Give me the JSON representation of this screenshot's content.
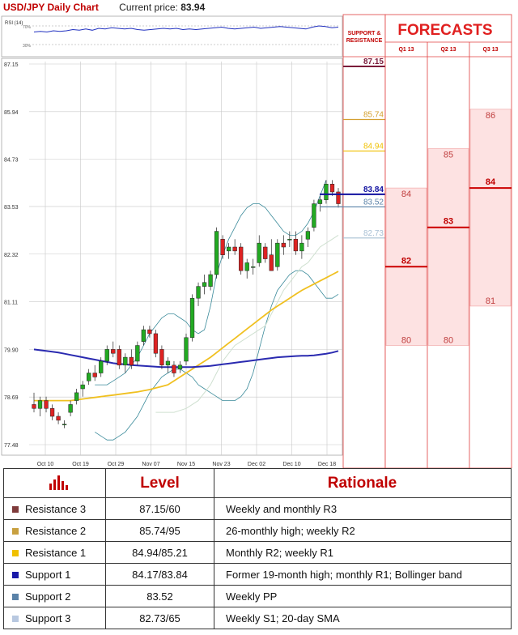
{
  "header": {
    "title": "USD/JPY Daily Chart",
    "price_label": "Current price:",
    "price_value": "83.94"
  },
  "rsi": {
    "label": "RSI (14)",
    "level_high": "70%",
    "level_low": "30%",
    "values": [
      60,
      61,
      60,
      62,
      61,
      62,
      64,
      63,
      65,
      63,
      66,
      65,
      67,
      66,
      65,
      66,
      64,
      63,
      64,
      65,
      66,
      65,
      66,
      64,
      65,
      64,
      65,
      66,
      67,
      68,
      66,
      65,
      66,
      67,
      68,
      66,
      67,
      68,
      69,
      68,
      67,
      66,
      65,
      68,
      70,
      69,
      67,
      68
    ]
  },
  "chart_data": {
    "type": "candlestick",
    "title": "USD/JPY Daily Chart",
    "y_ticks": [
      "87.15",
      "85.94",
      "84.73",
      "83.53",
      "82.32",
      "81.11",
      "79.90",
      "78.69",
      "77.48"
    ],
    "y_tick_values": [
      87.15,
      85.94,
      84.73,
      83.53,
      82.32,
      81.11,
      79.9,
      78.69,
      77.48
    ],
    "ylim": [
      77.48,
      87.15
    ],
    "x_ticks": [
      "Oct 10",
      "Oct 19",
      "Oct 29",
      "Nov 07",
      "Nov 15",
      "Nov 23",
      "Dec 02",
      "Dec 10",
      "Dec 18"
    ],
    "candles": [
      [
        78.5,
        78.8,
        78.3,
        78.4
      ],
      [
        78.4,
        78.7,
        78.2,
        78.6
      ],
      [
        78.6,
        78.7,
        78.3,
        78.4
      ],
      [
        78.4,
        78.5,
        78.1,
        78.2
      ],
      [
        78.2,
        78.3,
        78.0,
        78.1
      ],
      [
        78.0,
        78.1,
        77.9,
        78.0
      ],
      [
        78.3,
        78.6,
        78.2,
        78.5
      ],
      [
        78.6,
        78.9,
        78.5,
        78.8
      ],
      [
        78.9,
        79.1,
        78.7,
        79.0
      ],
      [
        79.1,
        79.4,
        79.0,
        79.3
      ],
      [
        79.3,
        79.5,
        79.1,
        79.2
      ],
      [
        79.3,
        79.7,
        79.2,
        79.6
      ],
      [
        79.6,
        80.0,
        79.5,
        79.9
      ],
      [
        79.9,
        80.1,
        79.7,
        79.8
      ],
      [
        79.9,
        80.0,
        79.4,
        79.5
      ],
      [
        79.5,
        79.8,
        79.3,
        79.7
      ],
      [
        79.7,
        79.9,
        79.4,
        79.5
      ],
      [
        79.6,
        80.1,
        79.5,
        80.0
      ],
      [
        80.1,
        80.5,
        80.0,
        80.4
      ],
      [
        80.4,
        80.5,
        80.2,
        80.3
      ],
      [
        80.3,
        80.4,
        79.7,
        79.8
      ],
      [
        79.9,
        80.0,
        79.4,
        79.5
      ],
      [
        79.5,
        79.7,
        79.3,
        79.6
      ],
      [
        79.5,
        79.6,
        79.2,
        79.3
      ],
      [
        79.4,
        79.6,
        79.3,
        79.5
      ],
      [
        79.6,
        80.3,
        79.5,
        80.2
      ],
      [
        80.2,
        81.3,
        80.1,
        81.2
      ],
      [
        81.2,
        81.6,
        81.0,
        81.5
      ],
      [
        81.5,
        81.8,
        81.3,
        81.6
      ],
      [
        81.5,
        81.9,
        81.4,
        81.8
      ],
      [
        81.8,
        83.0,
        81.7,
        82.9
      ],
      [
        82.7,
        82.8,
        82.2,
        82.3
      ],
      [
        82.4,
        82.6,
        82.2,
        82.5
      ],
      [
        82.5,
        82.7,
        82.3,
        82.4
      ],
      [
        82.5,
        82.6,
        81.8,
        81.9
      ],
      [
        81.9,
        82.2,
        81.7,
        82.1
      ],
      [
        82.0,
        82.2,
        81.8,
        82.0
      ],
      [
        82.1,
        82.8,
        82.0,
        82.6
      ],
      [
        82.5,
        82.6,
        82.1,
        82.2
      ],
      [
        82.3,
        82.7,
        81.9,
        81.9
      ],
      [
        82.0,
        82.7,
        81.9,
        82.6
      ],
      [
        82.6,
        82.8,
        82.3,
        82.5
      ],
      [
        82.7,
        82.9,
        82.5,
        82.7
      ],
      [
        82.7,
        82.9,
        82.3,
        82.4
      ],
      [
        82.4,
        82.8,
        82.2,
        82.6
      ],
      [
        82.7,
        83.0,
        82.5,
        82.9
      ],
      [
        83.0,
        83.7,
        82.9,
        83.6
      ],
      [
        83.6,
        83.8,
        83.4,
        83.7
      ],
      [
        83.7,
        84.2,
        83.6,
        84.1
      ],
      [
        84.1,
        84.2,
        83.8,
        83.9
      ],
      [
        83.9,
        84.0,
        83.5,
        83.6
      ]
    ],
    "sma20": [
      78.3,
      78.3,
      78.3,
      78.3,
      78.35,
      78.4,
      78.5,
      78.6,
      78.8,
      79.0,
      79.3,
      79.6,
      79.8,
      80.0,
      80.1,
      80.2,
      80.3,
      80.4,
      80.5,
      80.8,
      81.1,
      81.4,
      81.6,
      81.8,
      82.0,
      82.1,
      82.3,
      82.5,
      82.6,
      82.7,
      82.8
    ],
    "sma20_start_index": 20,
    "sma_slow": [
      79.9,
      79.88,
      79.86,
      79.84,
      79.82,
      79.79,
      79.76,
      79.73,
      79.7,
      79.67,
      79.64,
      79.61,
      79.58,
      79.55,
      79.53,
      79.52,
      79.5,
      79.49,
      79.48,
      79.47,
      79.46,
      79.45,
      79.45,
      79.45,
      79.45,
      79.45,
      79.45,
      79.46,
      79.47,
      79.48,
      79.5,
      79.52,
      79.54,
      79.56,
      79.58,
      79.6,
      79.62,
      79.64,
      79.66,
      79.68,
      79.7,
      79.71,
      79.72,
      79.73,
      79.74,
      79.74,
      79.75,
      79.77,
      79.79,
      79.82,
      79.86
    ],
    "sma_mid": [
      78.6,
      78.6,
      78.6,
      78.6,
      78.6,
      78.6,
      78.6,
      78.62,
      78.64,
      78.66,
      78.68,
      78.7,
      78.72,
      78.74,
      78.76,
      78.78,
      78.8,
      78.82,
      78.85,
      78.88,
      78.92,
      78.96,
      79.0,
      79.1,
      79.2,
      79.3,
      79.4,
      79.5,
      79.6,
      79.7,
      79.82,
      79.94,
      80.06,
      80.18,
      80.3,
      80.42,
      80.54,
      80.66,
      80.78,
      80.9,
      81.0,
      81.1,
      81.2,
      81.3,
      81.4,
      81.48,
      81.56,
      81.64,
      81.72,
      81.8,
      81.88
    ],
    "bb_upper": [
      79.0,
      79.0,
      79.0,
      79.1,
      79.2,
      79.3,
      79.5,
      79.7,
      80.0,
      80.3,
      80.5,
      80.7,
      80.8,
      80.8,
      80.7,
      80.6,
      80.4,
      80.3,
      80.4,
      81.0,
      81.8,
      82.3,
      82.7,
      83.0,
      83.3,
      83.5,
      83.6,
      83.6,
      83.5,
      83.3,
      83.1,
      82.9,
      82.8,
      82.8,
      82.9,
      83.1,
      83.4,
      83.8,
      84.2
    ],
    "bb_upper_start_index": 10,
    "bb_lower": [
      77.8,
      77.7,
      77.6,
      77.6,
      77.7,
      77.8,
      78.0,
      78.2,
      78.5,
      78.8,
      79.0,
      79.2,
      79.3,
      79.4,
      79.4,
      79.3,
      79.2,
      79.0,
      78.9,
      78.8,
      78.7,
      78.6,
      78.6,
      78.6,
      78.7,
      78.9,
      79.3,
      79.9,
      80.5,
      81.0,
      81.4,
      81.6,
      81.8,
      81.9,
      81.9,
      81.8,
      81.6,
      81.4,
      81.2,
      81.2,
      81.3
    ],
    "bb_lower_start_index": 10,
    "sr_levels": [
      {
        "label": "87.15",
        "value": 87.15,
        "color": "#7b1a3a"
      },
      {
        "label": "85.74",
        "value": 85.74,
        "color": "#d4a030"
      },
      {
        "label": "84.94",
        "value": 84.94,
        "color": "#f0c000"
      },
      {
        "label": "83.84",
        "value": 83.84,
        "color": "#1010a0"
      },
      {
        "label": "83.52",
        "value": 83.52,
        "color": "#5a82a8"
      },
      {
        "label": "82.73",
        "value": 82.73,
        "color": "#a8c0d4"
      }
    ],
    "sr_header": [
      "SUPPORT &",
      "RESISTANCE"
    ],
    "forecasts": {
      "title": "FORECASTS",
      "quarters": [
        {
          "label": "Q1 13",
          "high": 84,
          "mid": 82,
          "low": 80
        },
        {
          "label": "Q2 13",
          "high": 85,
          "mid": 83,
          "low": 80
        },
        {
          "label": "Q3 13",
          "high": 86,
          "mid": 84,
          "low": 81
        }
      ]
    }
  },
  "table": {
    "headers": {
      "icon": "bar-chart-icon",
      "level": "Level",
      "rationale": "Rationale"
    },
    "rows": [
      {
        "name": "Resistance 3",
        "color": "#7f3b3b",
        "level": "87.15/60",
        "rationale": "Weekly and monthly R3"
      },
      {
        "name": "Resistance 2",
        "color": "#c8a040",
        "level": "85.74/95",
        "rationale": "26-monthly high; weekly R2"
      },
      {
        "name": "Resistance 1",
        "color": "#f0c000",
        "level": "84.94/85.21",
        "rationale": "Monthly R2; weekly R1"
      },
      {
        "name": "Support 1",
        "color": "#1a1aa8",
        "level": "84.17/83.84",
        "rationale": "Former 19-month high; monthly R1; Bollinger band"
      },
      {
        "name": "Support 2",
        "color": "#5a82a8",
        "level": "83.52",
        "rationale": "Weekly PP"
      },
      {
        "name": "Support 3",
        "color": "#b8c8e0",
        "level": "82.73/65",
        "rationale": "Weekly S1; 20-day SMA"
      }
    ]
  }
}
